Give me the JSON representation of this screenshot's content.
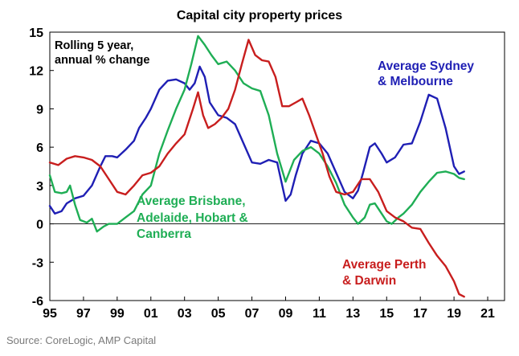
{
  "chart_data": {
    "type": "line",
    "title": "Capital city property prices",
    "subtitle_lines": [
      "Rolling 5 year,",
      "annual % change"
    ],
    "xlabel": "",
    "ylabel": "",
    "xlim": [
      1995,
      2022
    ],
    "ylim": [
      -6,
      15
    ],
    "x_ticks": [
      1995,
      1997,
      1999,
      2001,
      2003,
      2005,
      2007,
      2009,
      2011,
      2013,
      2015,
      2017,
      2019,
      2021
    ],
    "x_tick_labels": [
      "95",
      "97",
      "99",
      "01",
      "03",
      "05",
      "07",
      "09",
      "11",
      "13",
      "15",
      "17",
      "19",
      "21"
    ],
    "y_ticks": [
      -6,
      -3,
      0,
      3,
      6,
      9,
      12,
      15
    ],
    "y_tick_labels": [
      "-6",
      "-3",
      "0",
      "3",
      "6",
      "9",
      "12",
      "15"
    ],
    "series": [
      {
        "name": "Average Sydney & Melbourne",
        "label_lines": [
          "Average Sydney",
          "& Melbourne"
        ],
        "color": "#1f1fb4",
        "points": [
          [
            1995.0,
            1.4
          ],
          [
            1995.3,
            0.8
          ],
          [
            1995.7,
            1.0
          ],
          [
            1996.0,
            1.6
          ],
          [
            1996.5,
            2.0
          ],
          [
            1997.0,
            2.2
          ],
          [
            1997.5,
            3.0
          ],
          [
            1998.0,
            4.5
          ],
          [
            1998.3,
            5.3
          ],
          [
            1998.7,
            5.3
          ],
          [
            1999.0,
            5.2
          ],
          [
            1999.5,
            5.8
          ],
          [
            2000.0,
            6.5
          ],
          [
            2000.3,
            7.5
          ],
          [
            2000.7,
            8.3
          ],
          [
            2001.0,
            9.0
          ],
          [
            2001.5,
            10.5
          ],
          [
            2002.0,
            11.2
          ],
          [
            2002.5,
            11.3
          ],
          [
            2003.0,
            11.0
          ],
          [
            2003.3,
            10.5
          ],
          [
            2003.6,
            11.0
          ],
          [
            2003.9,
            12.3
          ],
          [
            2004.2,
            11.5
          ],
          [
            2004.5,
            9.5
          ],
          [
            2005.0,
            8.5
          ],
          [
            2005.5,
            8.3
          ],
          [
            2006.0,
            7.8
          ],
          [
            2006.5,
            6.3
          ],
          [
            2007.0,
            4.8
          ],
          [
            2007.5,
            4.7
          ],
          [
            2008.0,
            5.0
          ],
          [
            2008.5,
            4.8
          ],
          [
            2009.0,
            1.8
          ],
          [
            2009.3,
            2.3
          ],
          [
            2009.6,
            3.8
          ],
          [
            2010.0,
            5.5
          ],
          [
            2010.5,
            6.5
          ],
          [
            2011.0,
            6.3
          ],
          [
            2011.5,
            5.5
          ],
          [
            2012.0,
            4.0
          ],
          [
            2012.5,
            2.5
          ],
          [
            2013.0,
            2.0
          ],
          [
            2013.3,
            2.6
          ],
          [
            2013.6,
            4.0
          ],
          [
            2014.0,
            6.0
          ],
          [
            2014.3,
            6.3
          ],
          [
            2014.7,
            5.5
          ],
          [
            2015.0,
            4.8
          ],
          [
            2015.5,
            5.2
          ],
          [
            2016.0,
            6.2
          ],
          [
            2016.5,
            6.3
          ],
          [
            2017.0,
            8.0
          ],
          [
            2017.5,
            10.1
          ],
          [
            2018.0,
            9.8
          ],
          [
            2018.5,
            7.5
          ],
          [
            2019.0,
            4.5
          ],
          [
            2019.3,
            3.9
          ],
          [
            2019.6,
            4.1
          ]
        ]
      },
      {
        "name": "Average Brisbane, Adelaide, Hobart & Canberra",
        "label_lines": [
          "Average Brisbane,",
          "Adelaide, Hobart &",
          "Canberra"
        ],
        "color": "#1fae55",
        "points": [
          [
            1995.0,
            3.8
          ],
          [
            1995.3,
            2.5
          ],
          [
            1995.7,
            2.4
          ],
          [
            1996.0,
            2.5
          ],
          [
            1996.2,
            3.0
          ],
          [
            1996.5,
            1.5
          ],
          [
            1996.8,
            0.3
          ],
          [
            1997.2,
            0.1
          ],
          [
            1997.5,
            0.4
          ],
          [
            1997.8,
            -0.6
          ],
          [
            1998.2,
            -0.2
          ],
          [
            1998.5,
            0.0
          ],
          [
            1999.0,
            0.0
          ],
          [
            1999.5,
            0.5
          ],
          [
            2000.0,
            1.0
          ],
          [
            2000.5,
            2.3
          ],
          [
            2001.0,
            3.0
          ],
          [
            2001.5,
            5.5
          ],
          [
            2002.0,
            7.3
          ],
          [
            2002.5,
            9.0
          ],
          [
            2003.0,
            10.5
          ],
          [
            2003.4,
            12.5
          ],
          [
            2003.8,
            14.7
          ],
          [
            2004.2,
            14.0
          ],
          [
            2004.6,
            13.2
          ],
          [
            2005.0,
            12.5
          ],
          [
            2005.5,
            12.7
          ],
          [
            2006.0,
            12.0
          ],
          [
            2006.5,
            11.0
          ],
          [
            2007.0,
            10.6
          ],
          [
            2007.5,
            10.4
          ],
          [
            2008.0,
            8.5
          ],
          [
            2008.5,
            5.5
          ],
          [
            2009.0,
            3.3
          ],
          [
            2009.5,
            5.0
          ],
          [
            2010.0,
            5.7
          ],
          [
            2010.5,
            6.0
          ],
          [
            2011.0,
            5.5
          ],
          [
            2011.5,
            4.5
          ],
          [
            2012.0,
            3.2
          ],
          [
            2012.5,
            1.5
          ],
          [
            2013.0,
            0.5
          ],
          [
            2013.3,
            0.0
          ],
          [
            2013.7,
            0.5
          ],
          [
            2014.0,
            1.5
          ],
          [
            2014.3,
            1.6
          ],
          [
            2014.7,
            0.8
          ],
          [
            2015.0,
            0.2
          ],
          [
            2015.3,
            0.0
          ],
          [
            2015.7,
            0.5
          ],
          [
            2016.0,
            0.8
          ],
          [
            2016.5,
            1.5
          ],
          [
            2017.0,
            2.5
          ],
          [
            2017.5,
            3.3
          ],
          [
            2018.0,
            4.0
          ],
          [
            2018.5,
            4.1
          ],
          [
            2019.0,
            3.9
          ],
          [
            2019.3,
            3.6
          ],
          [
            2019.6,
            3.5
          ]
        ]
      },
      {
        "name": "Average Perth & Darwin",
        "label_lines": [
          "Average Perth",
          "& Darwin"
        ],
        "color": "#c81e1e",
        "points": [
          [
            1995.0,
            4.8
          ],
          [
            1995.5,
            4.6
          ],
          [
            1996.0,
            5.1
          ],
          [
            1996.5,
            5.3
          ],
          [
            1997.0,
            5.2
          ],
          [
            1997.5,
            5.0
          ],
          [
            1998.0,
            4.5
          ],
          [
            1998.5,
            3.5
          ],
          [
            1999.0,
            2.5
          ],
          [
            1999.5,
            2.3
          ],
          [
            2000.0,
            3.0
          ],
          [
            2000.5,
            3.8
          ],
          [
            2001.0,
            4.0
          ],
          [
            2001.5,
            4.5
          ],
          [
            2002.0,
            5.5
          ],
          [
            2002.5,
            6.3
          ],
          [
            2003.0,
            7.0
          ],
          [
            2003.5,
            9.0
          ],
          [
            2003.8,
            10.3
          ],
          [
            2004.1,
            8.5
          ],
          [
            2004.4,
            7.5
          ],
          [
            2004.8,
            7.8
          ],
          [
            2005.2,
            8.3
          ],
          [
            2005.6,
            9.0
          ],
          [
            2006.0,
            10.5
          ],
          [
            2006.4,
            12.5
          ],
          [
            2006.8,
            14.4
          ],
          [
            2007.2,
            13.2
          ],
          [
            2007.6,
            12.8
          ],
          [
            2008.0,
            12.7
          ],
          [
            2008.4,
            11.5
          ],
          [
            2008.8,
            9.2
          ],
          [
            2009.2,
            9.2
          ],
          [
            2009.6,
            9.5
          ],
          [
            2010.0,
            9.8
          ],
          [
            2010.4,
            8.5
          ],
          [
            2010.8,
            7.0
          ],
          [
            2011.2,
            5.5
          ],
          [
            2011.6,
            3.7
          ],
          [
            2012.0,
            2.5
          ],
          [
            2012.5,
            2.3
          ],
          [
            2013.0,
            2.5
          ],
          [
            2013.5,
            3.5
          ],
          [
            2014.0,
            3.5
          ],
          [
            2014.5,
            2.5
          ],
          [
            2015.0,
            1.0
          ],
          [
            2015.5,
            0.5
          ],
          [
            2016.0,
            0.2
          ],
          [
            2016.5,
            -0.3
          ],
          [
            2017.0,
            -0.4
          ],
          [
            2017.5,
            -1.5
          ],
          [
            2018.0,
            -2.5
          ],
          [
            2018.5,
            -3.3
          ],
          [
            2019.0,
            -4.5
          ],
          [
            2019.3,
            -5.5
          ],
          [
            2019.6,
            -5.7
          ]
        ]
      }
    ],
    "source": "Source: CoreLogic, AMP Capital"
  }
}
